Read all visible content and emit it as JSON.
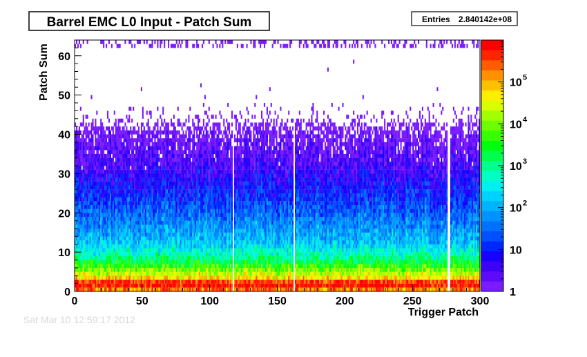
{
  "title": "Barrel EMC L0 Input - Patch Sum",
  "stats": {
    "label": "Entries",
    "value": "2.840142e+08"
  },
  "footer": "Sat Mar 10 12:59:17 2012",
  "colors": {
    "palette": [
      "#7a1cfe",
      "#5d0bfb",
      "#3c03f5",
      "#1800ff",
      "#0027ff",
      "#0050ff",
      "#0071ff",
      "#0093ff",
      "#00b3ff",
      "#00d2ff",
      "#00f0f0",
      "#00ffc4",
      "#00ff8c",
      "#00ff4c",
      "#00ff0e",
      "#35ff00",
      "#6cff00",
      "#a3ff00",
      "#d8ff00",
      "#ffee00",
      "#ffc000",
      "#ff9000",
      "#ff5c00",
      "#ff2400",
      "#ff0000"
    ]
  },
  "chart_data": {
    "type": "heatmap",
    "title": "Barrel EMC L0 Input - Patch Sum",
    "xlabel": "Trigger Patch",
    "ylabel": "Patch Sum",
    "xlim": [
      0,
      300
    ],
    "ylim": [
      0,
      64
    ],
    "x_ticks": [
      0,
      50,
      100,
      150,
      200,
      250,
      300
    ],
    "y_ticks": [
      0,
      10,
      20,
      30,
      40,
      50,
      60
    ],
    "z_scale": "log",
    "z_range": [
      1,
      1000000
    ],
    "z_ticks": [
      {
        "base": "1",
        "exp": ""
      },
      {
        "base": "10",
        "exp": ""
      },
      {
        "base": "10",
        "exp": "2"
      },
      {
        "base": "10",
        "exp": "3"
      },
      {
        "base": "10",
        "exp": "4"
      },
      {
        "base": "10",
        "exp": "5"
      }
    ],
    "entries": 284014200,
    "empty_columns": [
      117,
      162,
      276,
      277
    ],
    "profile": [
      {
        "patch_sum": 0,
        "counts": 200000
      },
      {
        "patch_sum": 1,
        "counts": 700000
      },
      {
        "patch_sum": 2,
        "counts": 400000
      },
      {
        "patch_sum": 3,
        "counts": 60000
      },
      {
        "patch_sum": 5,
        "counts": 10000
      },
      {
        "patch_sum": 8,
        "counts": 1000
      },
      {
        "patch_sum": 12,
        "counts": 150
      },
      {
        "patch_sum": 18,
        "counts": 40
      },
      {
        "patch_sum": 25,
        "counts": 10
      },
      {
        "patch_sum": 32,
        "counts": 3
      },
      {
        "patch_sum": 40,
        "counts": 1
      }
    ],
    "grid": false,
    "legend": "colorbar-right"
  }
}
